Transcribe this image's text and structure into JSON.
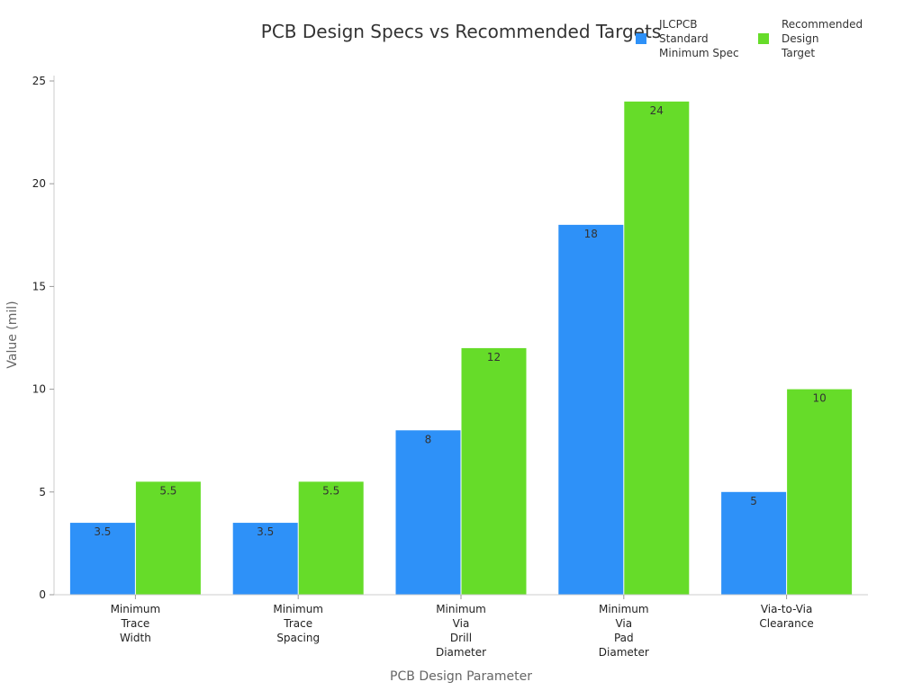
{
  "chart_data": {
    "type": "bar",
    "title": "PCB Design Specs vs Recommended Targets",
    "xlabel": "PCB Design Parameter",
    "ylabel": "Value (mil)",
    "ylim": [
      0,
      25
    ],
    "yticks": [
      0,
      5,
      10,
      15,
      20,
      25
    ],
    "grid": false,
    "legend_position": "top-right",
    "categories": [
      "Minimum Trace Width",
      "Minimum Trace Spacing",
      "Minimum Via Drill Diameter",
      "Minimum Via Pad Diameter",
      "Via-to-Via Clearance"
    ],
    "series": [
      {
        "name": "JLCPCB Standard Minimum Spec",
        "color": "#2e91f8",
        "values": [
          3.5,
          3.5,
          8,
          18,
          5
        ]
      },
      {
        "name": "Recommended Design Target",
        "color": "#66dc29",
        "values": [
          5.5,
          5.5,
          12,
          24,
          10
        ]
      }
    ]
  }
}
